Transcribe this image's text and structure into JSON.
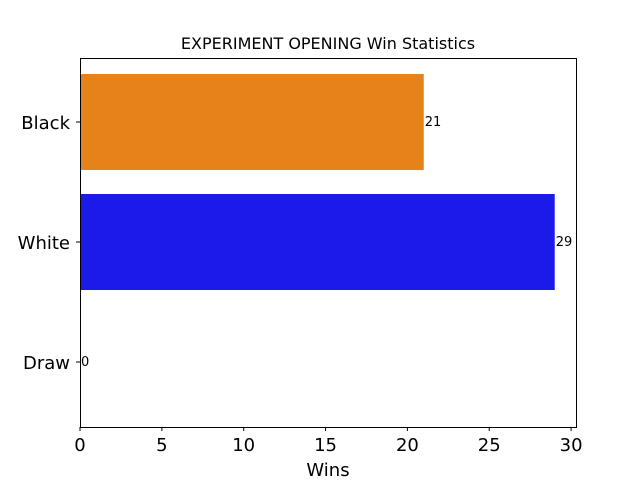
{
  "chart_data": {
    "type": "bar",
    "orientation": "horizontal",
    "title": "EXPERIMENT OPENING Win Statistics",
    "xlabel": "Wins",
    "ylabel": "",
    "categories": [
      "Black",
      "White",
      "Draw"
    ],
    "values": [
      21,
      29,
      0
    ],
    "value_labels": [
      "21",
      "29",
      "0"
    ],
    "colors": [
      "#e6821a",
      "#1c1ae8",
      "#ffffff"
    ],
    "xlim": [
      0,
      30.3
    ],
    "xticks": [
      0,
      5,
      10,
      15,
      20,
      25,
      30
    ],
    "xtick_labels": [
      "0",
      "5",
      "10",
      "15",
      "20",
      "25",
      "30"
    ],
    "grid": false,
    "legend": "none"
  }
}
